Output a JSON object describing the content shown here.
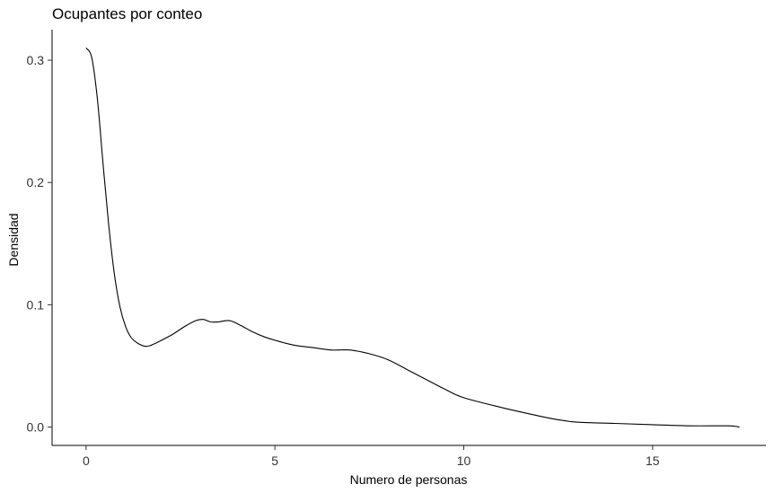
{
  "chart_data": {
    "type": "line",
    "title": "Ocupantes por conteo",
    "xlabel": "Numero de personas",
    "ylabel": "Densidad",
    "xlim": [
      -0.9,
      18.0
    ],
    "ylim": [
      -0.015,
      0.325
    ],
    "xticks": [
      0,
      5,
      10,
      15
    ],
    "xtick_labels": [
      "0",
      "5",
      "10",
      "15"
    ],
    "yticks": [
      0.0,
      0.1,
      0.2,
      0.3
    ],
    "ytick_labels": [
      "0.0",
      "0.1",
      "0.2",
      "0.3"
    ],
    "grid": false,
    "legend": "none",
    "line_color": "#000000",
    "series": [
      {
        "x": [
          0.0,
          0.15,
          0.3,
          0.45,
          0.6,
          0.75,
          0.9,
          1.05,
          1.2,
          1.4,
          1.6,
          1.8,
          2.0,
          2.3,
          2.6,
          2.9,
          3.1,
          3.3,
          3.5,
          3.8,
          4.1,
          4.4,
          4.7,
          5.0,
          5.5,
          6.0,
          6.5,
          7.0,
          7.5,
          8.0,
          8.5,
          9.0,
          9.5,
          10.0,
          11.0,
          12.0,
          12.5,
          13.0,
          14.0,
          15.0,
          16.0,
          17.0,
          17.3
        ],
        "y": [
          0.31,
          0.302,
          0.268,
          0.215,
          0.165,
          0.125,
          0.098,
          0.082,
          0.073,
          0.068,
          0.066,
          0.068,
          0.071,
          0.076,
          0.082,
          0.087,
          0.088,
          0.086,
          0.086,
          0.087,
          0.083,
          0.078,
          0.074,
          0.071,
          0.067,
          0.065,
          0.063,
          0.063,
          0.06,
          0.055,
          0.047,
          0.039,
          0.031,
          0.024,
          0.016,
          0.009,
          0.006,
          0.004,
          0.003,
          0.002,
          0.001,
          0.001,
          0.0
        ]
      }
    ]
  }
}
